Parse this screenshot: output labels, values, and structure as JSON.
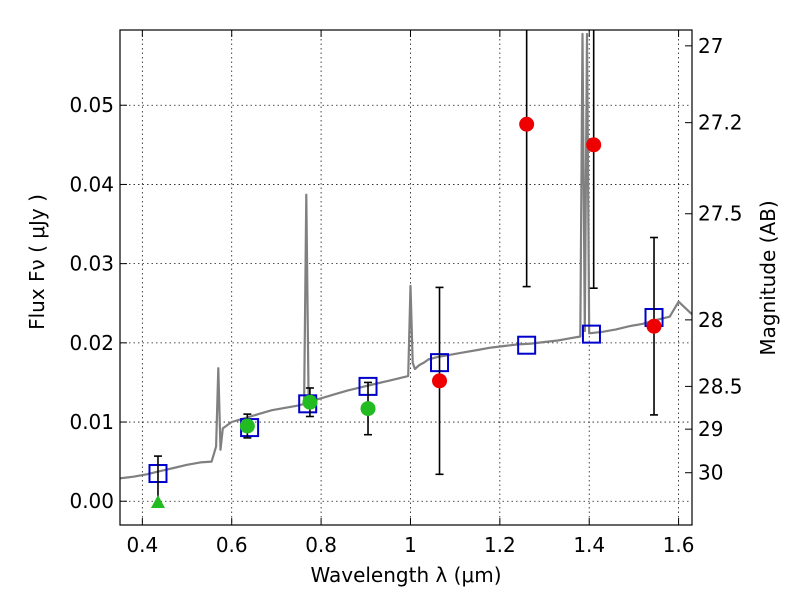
{
  "chart_data": {
    "type": "scatter",
    "title": "",
    "xlabel": "Wavelength  λ (μm)",
    "ylabel": "Flux  Fν  ( μJy )",
    "ylabel_right": "Magnitude (AB)",
    "xlim": [
      0.35,
      1.63
    ],
    "ylim": [
      -0.003,
      0.0595
    ],
    "grid": true,
    "x_ticks": [
      0.4,
      0.6,
      0.8,
      1.0,
      1.2,
      1.4,
      1.6
    ],
    "x_tick_labels": [
      "0.4",
      "0.6",
      "0.8",
      "1",
      "1.2",
      "1.4",
      "1.6"
    ],
    "y_ticks": [
      0.0,
      0.01,
      0.02,
      0.03,
      0.04,
      0.05
    ],
    "y_tick_labels": [
      "0.00",
      "0.01",
      "0.02",
      "0.03",
      "0.04",
      "0.05"
    ],
    "right_ticks": [
      {
        "label": "27",
        "flux": 0.0575
      },
      {
        "label": "27.2",
        "flux": 0.0478
      },
      {
        "label": "27.5",
        "flux": 0.0363
      },
      {
        "label": "28",
        "flux": 0.0229
      },
      {
        "label": "28.5",
        "flux": 0.0145
      },
      {
        "label": "29",
        "flux": 0.0091
      },
      {
        "label": "30",
        "flux": 0.0036
      }
    ],
    "series": [
      {
        "kind": "line",
        "color": "#808080",
        "x": [
          0.35,
          0.38,
          0.41,
          0.44,
          0.47,
          0.5,
          0.53,
          0.555,
          0.565,
          0.57,
          0.575,
          0.58,
          0.6,
          0.63,
          0.66,
          0.69,
          0.72,
          0.75,
          0.762,
          0.767,
          0.772,
          0.78,
          0.8,
          0.83,
          0.86,
          0.89,
          0.92,
          0.95,
          0.98,
          0.995,
          1.0,
          1.005,
          1.01,
          1.02,
          1.03,
          1.04,
          1.06,
          1.09,
          1.12,
          1.15,
          1.18,
          1.21,
          1.24,
          1.27,
          1.3,
          1.33,
          1.36,
          1.38,
          1.385,
          1.39,
          1.395,
          1.4,
          1.43,
          1.46,
          1.49,
          1.52,
          1.55,
          1.58,
          1.6,
          1.63
        ],
        "y": [
          0.0029,
          0.0031,
          0.0034,
          0.0038,
          0.0042,
          0.0046,
          0.0049,
          0.005,
          0.0069,
          0.0168,
          0.0065,
          0.0092,
          0.01,
          0.0105,
          0.011,
          0.0115,
          0.0118,
          0.0121,
          0.0123,
          0.0387,
          0.0128,
          0.0127,
          0.013,
          0.0135,
          0.014,
          0.0144,
          0.0148,
          0.0152,
          0.0156,
          0.0158,
          0.0272,
          0.0175,
          0.0167,
          0.0172,
          0.0175,
          0.0179,
          0.0182,
          0.0185,
          0.0188,
          0.0191,
          0.0194,
          0.0196,
          0.0198,
          0.0199,
          0.0201,
          0.0203,
          0.0206,
          0.0208,
          0.059,
          0.0215,
          0.059,
          0.0212,
          0.0214,
          0.0217,
          0.0221,
          0.0224,
          0.0229,
          0.0233,
          0.0252,
          0.0236
        ]
      },
      {
        "kind": "scatter",
        "marker": "square-open",
        "color": "#0000cc",
        "x": [
          0.435,
          0.64,
          0.77,
          0.905,
          1.065,
          1.26,
          1.405,
          1.545
        ],
        "y": [
          0.0035,
          0.0093,
          0.0123,
          0.0145,
          0.0175,
          0.0197,
          0.0211,
          0.0232
        ]
      },
      {
        "kind": "scatter",
        "marker": "circle",
        "color": "#22bb22",
        "x": [
          0.635,
          0.775,
          0.905
        ],
        "y": [
          0.0095,
          0.0125,
          0.0117
        ],
        "err": [
          0.0015,
          0.0018,
          0.0033
        ]
      },
      {
        "kind": "scatter",
        "marker": "triangle-up",
        "color": "#22bb22",
        "x": [
          0.435
        ],
        "y": [
          -0.0001
        ],
        "err_upper": [
          0.0058
        ]
      },
      {
        "kind": "scatter",
        "marker": "circle",
        "color": "#ee0000",
        "x": [
          1.065,
          1.26,
          1.41,
          1.545
        ],
        "y": [
          0.0152,
          0.0476,
          0.045,
          0.0221
        ],
        "err": [
          0.0118,
          0.0205,
          0.0181,
          0.0112
        ]
      }
    ]
  }
}
